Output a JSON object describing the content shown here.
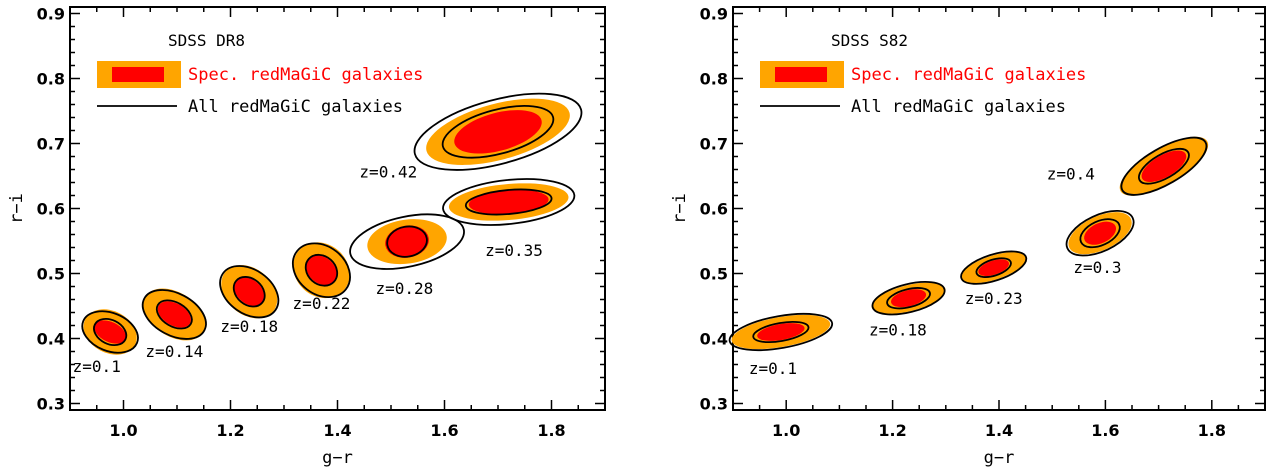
{
  "colors": {
    "outer": "#FFA500",
    "inner": "#FF0000",
    "contour": "#000000",
    "spec_text": "#FF0000"
  },
  "chart_data": [
    {
      "type": "scatter",
      "legend_title": "SDSS DR8",
      "legend": {
        "spec": "Spec. redMaGiC galaxies",
        "all": "All redMaGiC galaxies",
        "placement": "top-left"
      },
      "xlabel": "g−r",
      "ylabel": "r−i",
      "xlim": [
        0.9,
        1.9
      ],
      "ylim": [
        0.29,
        0.91
      ],
      "xticks": [
        1.0,
        1.2,
        1.4,
        1.6,
        1.8
      ],
      "xtick_labels": [
        "1.0",
        "1.2",
        "1.4",
        "1.6",
        "1.8"
      ],
      "yticks": [
        0.3,
        0.4,
        0.5,
        0.6,
        0.7,
        0.8,
        0.9
      ],
      "ytick_labels": [
        "0.3",
        "0.4",
        "0.5",
        "0.6",
        "0.7",
        "0.8",
        "0.9"
      ],
      "groups": [
        {
          "label": "z=0.1",
          "x": 0.975,
          "y": 0.41,
          "label_x": 0.95,
          "label_y": 0.358
        },
        {
          "label": "z=0.14",
          "x": 1.095,
          "y": 0.437,
          "label_x": 1.095,
          "label_y": 0.381
        },
        {
          "label": "z=0.18",
          "x": 1.235,
          "y": 0.472,
          "label_x": 1.235,
          "label_y": 0.419
        },
        {
          "label": "z=0.22",
          "x": 1.37,
          "y": 0.505,
          "label_x": 1.37,
          "label_y": 0.455
        },
        {
          "label": "z=0.28",
          "x": 1.53,
          "y": 0.549,
          "label_x": 1.525,
          "label_y": 0.478
        },
        {
          "label": "z=0.35",
          "x": 1.72,
          "y": 0.61,
          "label_x": 1.73,
          "label_y": 0.536
        },
        {
          "label": "z=0.42",
          "x": 1.7,
          "y": 0.718,
          "label_x": 1.495,
          "label_y": 0.657
        }
      ]
    },
    {
      "type": "scatter",
      "legend_title": "SDSS S82",
      "legend": {
        "spec": "Spec. redMaGiC galaxies",
        "all": "All redMaGiC galaxies",
        "placement": "top-left"
      },
      "xlabel": "g−r",
      "ylabel": "r−i",
      "xlim": [
        0.9,
        1.9
      ],
      "ylim": [
        0.29,
        0.91
      ],
      "xticks": [
        1.0,
        1.2,
        1.4,
        1.6,
        1.8
      ],
      "xtick_labels": [
        "1.0",
        "1.2",
        "1.4",
        "1.6",
        "1.8"
      ],
      "yticks": [
        0.3,
        0.4,
        0.5,
        0.6,
        0.7,
        0.8,
        0.9
      ],
      "ytick_labels": [
        "0.3",
        "0.4",
        "0.5",
        "0.6",
        "0.7",
        "0.8",
        "0.9"
      ],
      "groups": [
        {
          "label": "z=0.1",
          "x": 0.99,
          "y": 0.41,
          "label_x": 0.975,
          "label_y": 0.355
        },
        {
          "label": "z=0.18",
          "x": 1.23,
          "y": 0.462,
          "label_x": 1.21,
          "label_y": 0.414
        },
        {
          "label": "z=0.23",
          "x": 1.39,
          "y": 0.509,
          "label_x": 1.39,
          "label_y": 0.462
        },
        {
          "label": "z=0.3",
          "x": 1.59,
          "y": 0.562,
          "label_x": 1.585,
          "label_y": 0.51
        },
        {
          "label": "z=0.4",
          "x": 1.71,
          "y": 0.665,
          "label_x": 1.535,
          "label_y": 0.654
        }
      ]
    }
  ]
}
